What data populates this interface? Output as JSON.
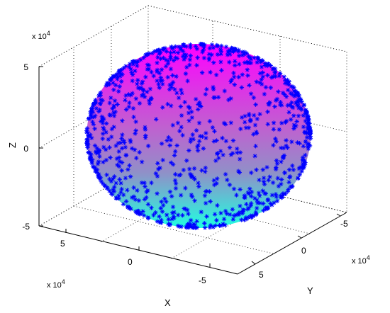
{
  "chart_data": {
    "type": "scatter",
    "subtype": "3d-ellipsoid-surface-with-points",
    "title": "",
    "xlabel": "X",
    "ylabel": "Y",
    "zlabel": "Z",
    "x_exponent_label": "x 10",
    "y_exponent_label": "x 10",
    "z_exponent_label": "x 10",
    "exponent_power": "4",
    "xlim": [
      -7,
      7
    ],
    "ylim": [
      -7,
      7
    ],
    "zlim": [
      -5,
      7
    ],
    "x_ticks": [
      "5",
      "0",
      "-5"
    ],
    "y_ticks": [
      "-5",
      "0",
      "5"
    ],
    "z_ticks": [
      "5",
      "0",
      "-5"
    ],
    "grid": true,
    "ellipsoid": {
      "center": [
        0,
        0,
        0
      ],
      "radii_x1e4": [
        6,
        6,
        4.5
      ]
    },
    "surface_colormap": [
      "#00ffff",
      "#ff00ff"
    ],
    "marker": "*",
    "marker_color": "#0000ff",
    "point_count": 1800
  }
}
